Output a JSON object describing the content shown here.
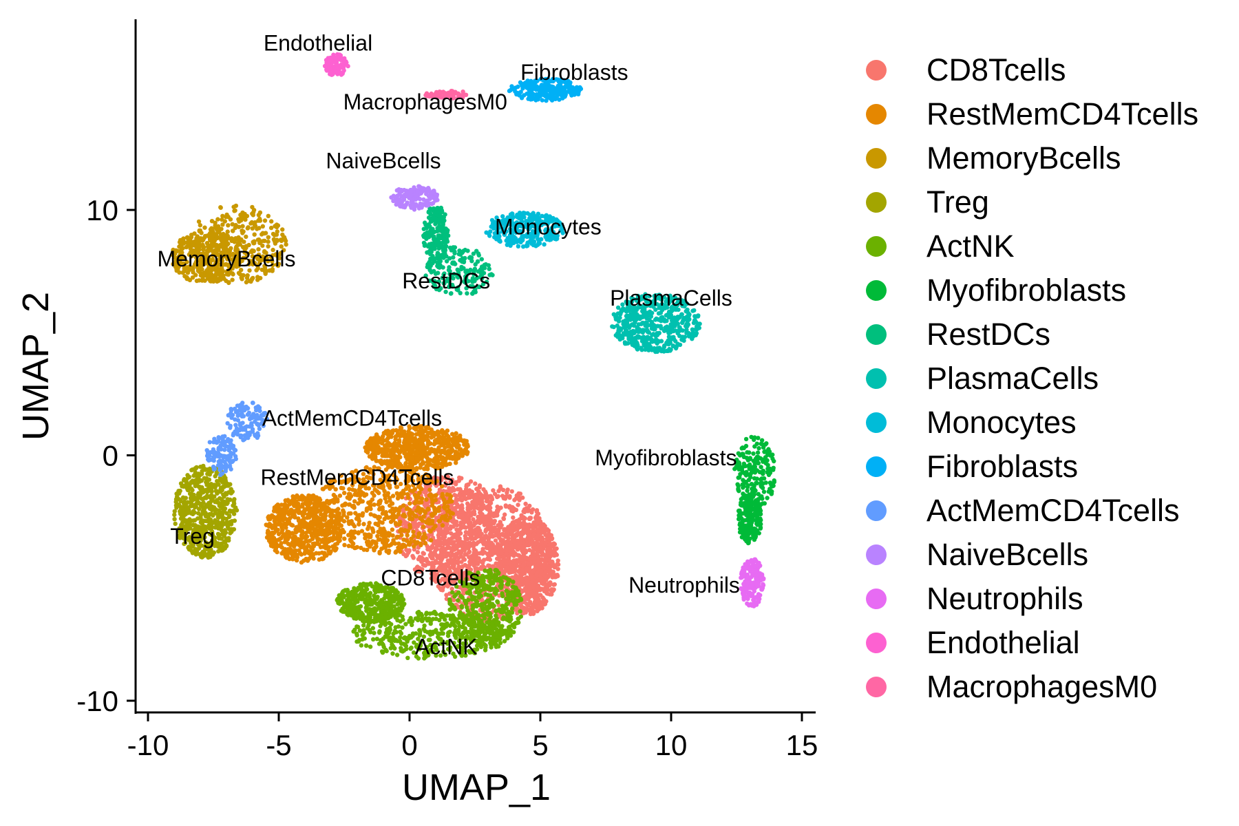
{
  "chart_data": {
    "type": "scatter",
    "xlabel": "UMAP_1",
    "ylabel": "UMAP_2",
    "xlim": [
      -10.5,
      15.5
    ],
    "ylim": [
      -10.5,
      17.8
    ],
    "xticks": [
      -10,
      -5,
      0,
      5,
      10,
      15
    ],
    "yticks": [
      -10,
      0,
      10
    ],
    "grid": false,
    "legend": "right",
    "point_color_by": "cluster",
    "clusters": [
      {
        "name": "CD8Tcells",
        "color": "#F8766D",
        "label_at": [
          0.8,
          -5.3
        ],
        "n": 2300,
        "blobs": [
          [
            3.1,
            -4.0,
            2.3,
            2.8
          ],
          [
            1.5,
            -3.0,
            2.0,
            2.2
          ],
          [
            4.5,
            -4.5,
            1.2,
            2.0
          ]
        ]
      },
      {
        "name": "RestMemCD4Tcells",
        "color": "#E58700",
        "label_at": [
          -2.0,
          -1.2
        ],
        "n": 1800,
        "blobs": [
          [
            -1.0,
            -2.2,
            2.7,
            1.8
          ],
          [
            0.3,
            0.3,
            2.0,
            0.9
          ],
          [
            -4.0,
            -3.0,
            1.5,
            1.4
          ]
        ]
      },
      {
        "name": "MemoryBcells",
        "color": "#C99800",
        "label_at": [
          -7.0,
          7.7
        ],
        "n": 650,
        "blobs": [
          [
            -6.6,
            8.6,
            1.9,
            1.6
          ],
          [
            -7.8,
            8.1,
            1.3,
            1.1
          ]
        ]
      },
      {
        "name": "Treg",
        "color": "#A3A500",
        "label_at": [
          -8.3,
          -3.6
        ],
        "n": 600,
        "blobs": [
          [
            -7.8,
            -2.3,
            1.2,
            1.9
          ]
        ]
      },
      {
        "name": "ActNK",
        "color": "#6BB100",
        "label_at": [
          1.4,
          -8.1
        ],
        "n": 1200,
        "blobs": [
          [
            0.8,
            -7.3,
            3.0,
            1.0
          ],
          [
            2.9,
            -6.2,
            1.4,
            1.6
          ],
          [
            -1.5,
            -6.0,
            1.3,
            0.8
          ]
        ]
      },
      {
        "name": "Myofibroblasts",
        "color": "#00BA38",
        "label_at": [
          9.8,
          -0.4
        ],
        "n": 400,
        "blobs": [
          [
            13.2,
            -0.7,
            0.8,
            1.5
          ],
          [
            13.0,
            -2.6,
            0.45,
            1.0
          ]
        ]
      },
      {
        "name": "RestDCs",
        "color": "#00BF7D",
        "label_at": [
          1.4,
          6.8
        ],
        "n": 350,
        "blobs": [
          [
            1.9,
            7.5,
            1.3,
            1.0
          ],
          [
            1.0,
            9.0,
            0.5,
            1.2
          ]
        ]
      },
      {
        "name": "PlasmaCells",
        "color": "#00C0AF",
        "label_at": [
          10.0,
          6.1
        ],
        "n": 500,
        "blobs": [
          [
            9.4,
            5.4,
            1.7,
            1.2
          ]
        ]
      },
      {
        "name": "Monocytes",
        "color": "#00BCD8",
        "label_at": [
          5.3,
          9.0
        ],
        "n": 300,
        "blobs": [
          [
            4.4,
            9.2,
            1.5,
            0.7
          ]
        ]
      },
      {
        "name": "Fibroblasts",
        "color": "#00B0F6",
        "label_at": [
          6.3,
          15.3
        ],
        "n": 220,
        "blobs": [
          [
            5.2,
            14.9,
            1.4,
            0.45
          ]
        ]
      },
      {
        "name": "ActMemCD4Tcells",
        "color": "#619CFF",
        "label_at": [
          -2.2,
          1.2
        ],
        "n": 220,
        "blobs": [
          [
            -6.2,
            1.4,
            0.8,
            0.8
          ],
          [
            -7.2,
            0.0,
            0.6,
            0.8
          ]
        ]
      },
      {
        "name": "NaiveBcells",
        "color": "#B983FF",
        "label_at": [
          -1.0,
          11.7
        ],
        "n": 150,
        "blobs": [
          [
            0.2,
            10.5,
            0.9,
            0.5
          ]
        ]
      },
      {
        "name": "Neutrophils",
        "color": "#E76BF3",
        "label_at": [
          10.5,
          -5.6
        ],
        "n": 170,
        "blobs": [
          [
            13.1,
            -5.2,
            0.45,
            1.0
          ]
        ]
      },
      {
        "name": "Endothelial",
        "color": "#FD61D1",
        "label_at": [
          -3.5,
          16.5
        ],
        "n": 100,
        "blobs": [
          [
            -2.8,
            15.9,
            0.45,
            0.45
          ]
        ]
      },
      {
        "name": "MacrophagesM0",
        "color": "#FF67A4",
        "label_at": [
          0.6,
          14.1
        ],
        "n": 60,
        "blobs": [
          [
            1.5,
            14.7,
            0.9,
            0.15
          ]
        ]
      }
    ]
  }
}
